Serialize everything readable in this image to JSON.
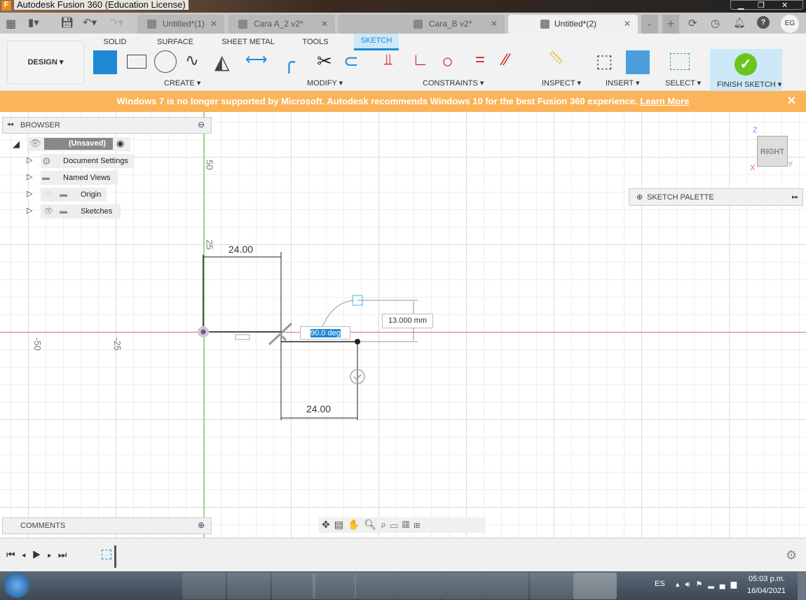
{
  "window": {
    "title": "Autodesk Fusion 360 (Education License)"
  },
  "tabs": [
    {
      "label": "Untitled*(1)"
    },
    {
      "label": "Cara A_2 v2*"
    },
    {
      "label": "Cara_B v2*"
    },
    {
      "label": "Untitled*(2)",
      "active": true
    }
  ],
  "user": {
    "initials": "EG"
  },
  "ribbon": {
    "workspace": "DESIGN",
    "tabs": [
      "SOLID",
      "SURFACE",
      "SHEET METAL",
      "TOOLS",
      "SKETCH"
    ],
    "active_tab": "SKETCH",
    "groups": [
      "CREATE",
      "MODIFY",
      "CONSTRAINTS",
      "INSPECT",
      "INSERT",
      "SELECT",
      "FINISH SKETCH"
    ]
  },
  "banner": {
    "text": "Windows 7 is no longer supported by Microsoft. Autodesk recommends Windows 10 for the best Fusion 360 experience.",
    "link": "Learn More"
  },
  "browser": {
    "title": "BROWSER",
    "root": "(Unsaved)",
    "items": [
      "Document Settings",
      "Named Views",
      "Origin",
      "Sketches"
    ]
  },
  "comments": {
    "title": "COMMENTS"
  },
  "sketch_palette": {
    "title": "SKETCH PALETTE"
  },
  "viewcube": {
    "face": "RIGHT",
    "axes": [
      "Z",
      "Y",
      "X"
    ]
  },
  "canvas": {
    "axis_labels": [
      "50",
      "25",
      "-50",
      "-25"
    ],
    "dimensions": [
      "24.00",
      "24.00",
      "13.000 mm"
    ],
    "angle_input": "90.0 deg"
  },
  "colors": {
    "accent": "#1e8ad6",
    "banner": "#fbb45a",
    "finish": "#6cc51e"
  },
  "taskbar": {
    "lang": "ES",
    "time": "05:03 p.m.",
    "date": "16/04/2021"
  }
}
